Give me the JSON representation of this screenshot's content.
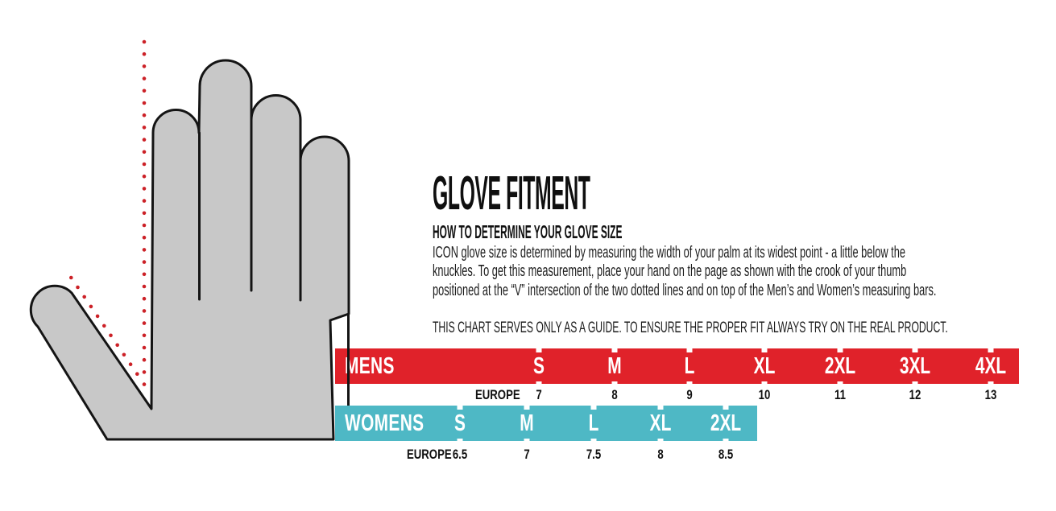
{
  "title": "GLOVE FITMENT",
  "how_to": {
    "heading": "HOW TO DETERMINE YOUR GLOVE SIZE",
    "body_lines": [
      "ICON glove size is determined by measuring the width of your palm at its widest point - a little below the",
      "knuckles. To get this measurement, place your hand on the page as shown with the crook of your thumb",
      "positioned at the “V” intersection of the two dotted lines and on top of the Men’s and Women’s measuring bars."
    ],
    "note": "THIS CHART SERVES ONLY AS A GUIDE. TO ENSURE THE PROPER FIT ALWAYS TRY ON THE REAL PRODUCT."
  },
  "mens": {
    "label": "MENS",
    "europe_label": "EUROPE",
    "sizes": [
      "S",
      "M",
      "L",
      "XL",
      "2XL",
      "3XL",
      "4XL"
    ],
    "europe_values": [
      "7",
      "8",
      "9",
      "10",
      "11",
      "12",
      "13"
    ]
  },
  "womens": {
    "label": "WOMENS",
    "europe_label": "EUROPE",
    "sizes": [
      "S",
      "M",
      "L",
      "XL",
      "2XL"
    ],
    "europe_values": [
      "6.5",
      "7",
      "7.5",
      "8",
      "8.5"
    ]
  },
  "colors": {
    "mens_bar": "#e0222a",
    "womens_bar": "#4eb8c5",
    "hand_fill": "#c8c8c8",
    "outline": "#141414",
    "dots": "#cc2127"
  },
  "chart_data": {
    "type": "table",
    "title": "GLOVE FITMENT",
    "tables": [
      {
        "name": "MENS",
        "row_label": "EUROPE",
        "sizes": [
          "S",
          "M",
          "L",
          "XL",
          "2XL",
          "3XL",
          "4XL"
        ],
        "europe": [
          7,
          8,
          9,
          10,
          11,
          12,
          13
        ]
      },
      {
        "name": "WOMENS",
        "row_label": "EUROPE",
        "sizes": [
          "S",
          "M",
          "L",
          "XL",
          "2XL"
        ],
        "europe": [
          6.5,
          7,
          7.5,
          8,
          8.5
        ]
      }
    ]
  }
}
